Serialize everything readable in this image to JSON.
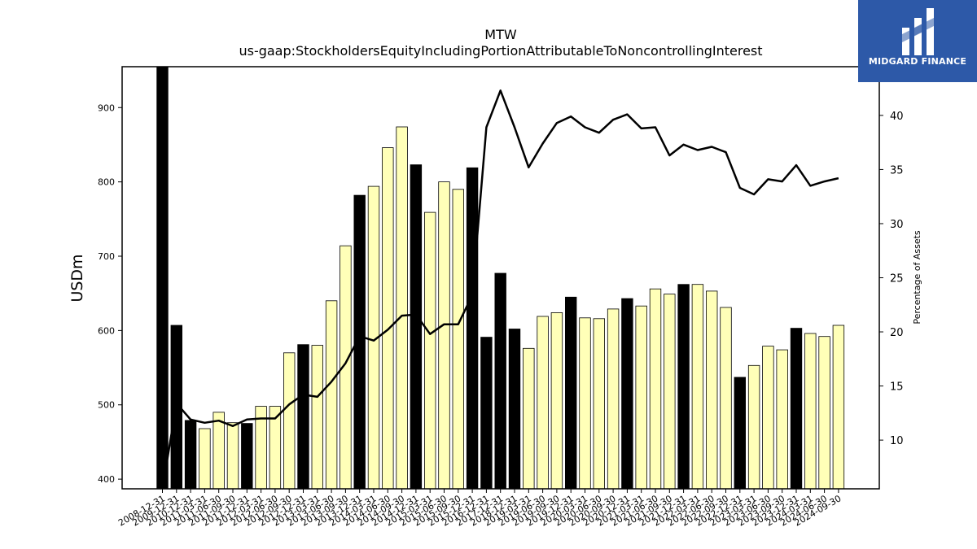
{
  "chart_data": {
    "type": "bar",
    "title": "MTW",
    "subtitle": "us-gaap:StockholdersEquityIncludingPortionAttributableToNoncontrollingInterest",
    "ylabel": "USDm",
    "y2label": "Percentage of Assets",
    "ylim": [
      387,
      955
    ],
    "y2lim": [
      5.5,
      44.5
    ],
    "yticks": [
      400,
      500,
      600,
      700,
      800,
      900
    ],
    "y2ticks": [
      10,
      15,
      20,
      25,
      30,
      35,
      40
    ],
    "categories": [
      "2008-12-31",
      "2009-12-31",
      "2010-12-31",
      "2011-03-31",
      "2011-06-30",
      "2011-09-30",
      "2011-12-31",
      "2012-03-31",
      "2012-06-30",
      "2012-09-30",
      "2012-12-31",
      "2013-03-31",
      "2013-06-30",
      "2013-09-30",
      "2013-12-31",
      "2014-03-31",
      "2014-06-30",
      "2014-09-30",
      "2014-12-31",
      "2015-03-31",
      "2015-06-30",
      "2015-09-30",
      "2015-12-31",
      "2016-12-31",
      "2017-12-31",
      "2018-12-31",
      "2019-03-31",
      "2019-06-30",
      "2019-09-30",
      "2019-12-31",
      "2020-03-31",
      "2020-06-30",
      "2020-09-30",
      "2020-12-31",
      "2021-03-31",
      "2021-06-30",
      "2021-09-30",
      "2021-12-31",
      "2022-03-31",
      "2022-06-30",
      "2022-09-30",
      "2022-12-31",
      "2023-03-31",
      "2023-06-30",
      "2023-09-30",
      "2023-12-31",
      "2024-03-31",
      "2024-06-30",
      "2024-09-30"
    ],
    "series": [
      {
        "type": "bar",
        "values": [
          955,
          607,
          479,
          468,
          490,
          476,
          475,
          498,
          498,
          570,
          581,
          580,
          640,
          714,
          782,
          794,
          846,
          874,
          823,
          759,
          800,
          790,
          819,
          591,
          677,
          602,
          576,
          619,
          624,
          645,
          617,
          616,
          629,
          643,
          633,
          656,
          649,
          662,
          662,
          653,
          631,
          537,
          553,
          579,
          574,
          603,
          596,
          592,
          607
        ],
        "annual": [
          true,
          true,
          true,
          false,
          false,
          false,
          true,
          false,
          false,
          false,
          true,
          false,
          false,
          false,
          true,
          false,
          false,
          false,
          true,
          false,
          false,
          false,
          true,
          true,
          true,
          true,
          false,
          false,
          false,
          true,
          false,
          false,
          false,
          true,
          false,
          false,
          false,
          true,
          false,
          false,
          false,
          true,
          false,
          false,
          false,
          true,
          false,
          false,
          false
        ]
      },
      {
        "type": "line",
        "axis": "right",
        "values": [
          5.5,
          13.4,
          11.9,
          11.6,
          11.8,
          11.3,
          11.9,
          12.0,
          12.0,
          13.3,
          14.2,
          14.0,
          15.4,
          17.1,
          19.6,
          19.2,
          20.2,
          21.5,
          21.6,
          19.8,
          20.7,
          20.7,
          23.4,
          38.9,
          42.3,
          38.9,
          35.2,
          37.4,
          39.3,
          39.9,
          38.9,
          38.4,
          39.6,
          40.1,
          38.8,
          38.9,
          36.3,
          37.3,
          36.8,
          37.1,
          36.6,
          33.3,
          32.7,
          34.1,
          33.9,
          35.4,
          33.5,
          33.9,
          34.2
        ]
      }
    ],
    "colors": {
      "annual_bar": "#000000",
      "quarter_bar": "#ffffb8",
      "line": "#000000",
      "logo_bg": "#2d59a8"
    }
  },
  "logo": {
    "text": "MIDGARD FINANCE"
  }
}
